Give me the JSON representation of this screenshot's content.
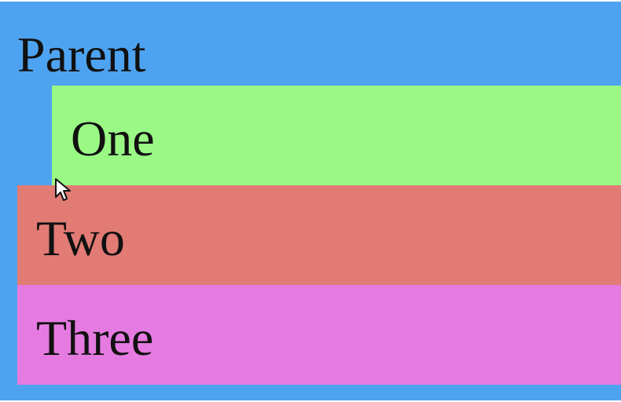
{
  "parent": {
    "label": "Parent",
    "color": "#4ea3f0"
  },
  "children": [
    {
      "label": "One",
      "color": "#9af985"
    },
    {
      "label": "Two",
      "color": "#e27b74"
    },
    {
      "label": "Three",
      "color": "#e57ae1"
    }
  ],
  "cursor": {
    "icon": "mouse-pointer-icon"
  }
}
